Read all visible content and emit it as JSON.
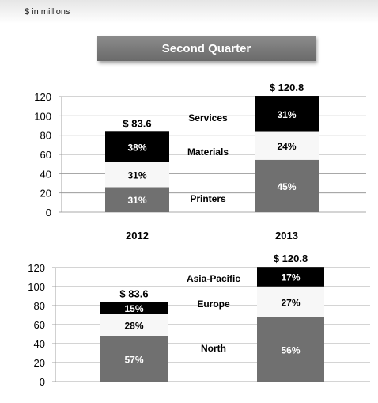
{
  "header": {
    "units": "$ in millions",
    "section_title": "Second Quarter"
  },
  "chart_data": [
    {
      "type": "bar",
      "stacked": true,
      "categories": [
        "2012",
        "2013"
      ],
      "totals": [
        "$ 83.6",
        "$ 120.8"
      ],
      "total_values": [
        83.6,
        120.8
      ],
      "ylim": [
        0,
        120
      ],
      "yticks": [
        "0",
        "20",
        "40",
        "60",
        "80",
        "100",
        "120"
      ],
      "grid": true,
      "series": [
        {
          "name": "Printers",
          "values": [
            25.9,
            54.4
          ],
          "labels": [
            "31%",
            "45%"
          ],
          "color": "#707070",
          "text_color": "#ffffff"
        },
        {
          "name": "Materials",
          "values": [
            25.9,
            29.0
          ],
          "labels": [
            "31%",
            "24%"
          ],
          "color": "#f7f7f7",
          "text_color": "#000000"
        },
        {
          "name": "Services",
          "values": [
            31.8,
            37.4
          ],
          "labels": [
            "38%",
            "31%"
          ],
          "color": "#000000",
          "text_color": "#ffffff"
        }
      ]
    },
    {
      "type": "bar",
      "stacked": true,
      "categories": [
        "2012",
        "2013"
      ],
      "totals": [
        "$ 83.6",
        "$ 120.8"
      ],
      "total_values": [
        83.6,
        120.8
      ],
      "ylim": [
        0,
        120
      ],
      "yticks": [
        "0",
        "20",
        "40",
        "60",
        "80",
        "100",
        "120"
      ],
      "grid": true,
      "series": [
        {
          "name": "North",
          "values": [
            47.7,
            67.6
          ],
          "labels": [
            "57%",
            "56%"
          ],
          "color": "#707070",
          "text_color": "#ffffff"
        },
        {
          "name": "Europe",
          "values": [
            23.4,
            32.6
          ],
          "labels": [
            "28%",
            "27%"
          ],
          "color": "#f7f7f7",
          "text_color": "#000000"
        },
        {
          "name": "Asia-Pacific",
          "values": [
            12.5,
            20.5
          ],
          "labels": [
            "15%",
            "17%"
          ],
          "color": "#000000",
          "text_color": "#ffffff"
        }
      ]
    }
  ]
}
